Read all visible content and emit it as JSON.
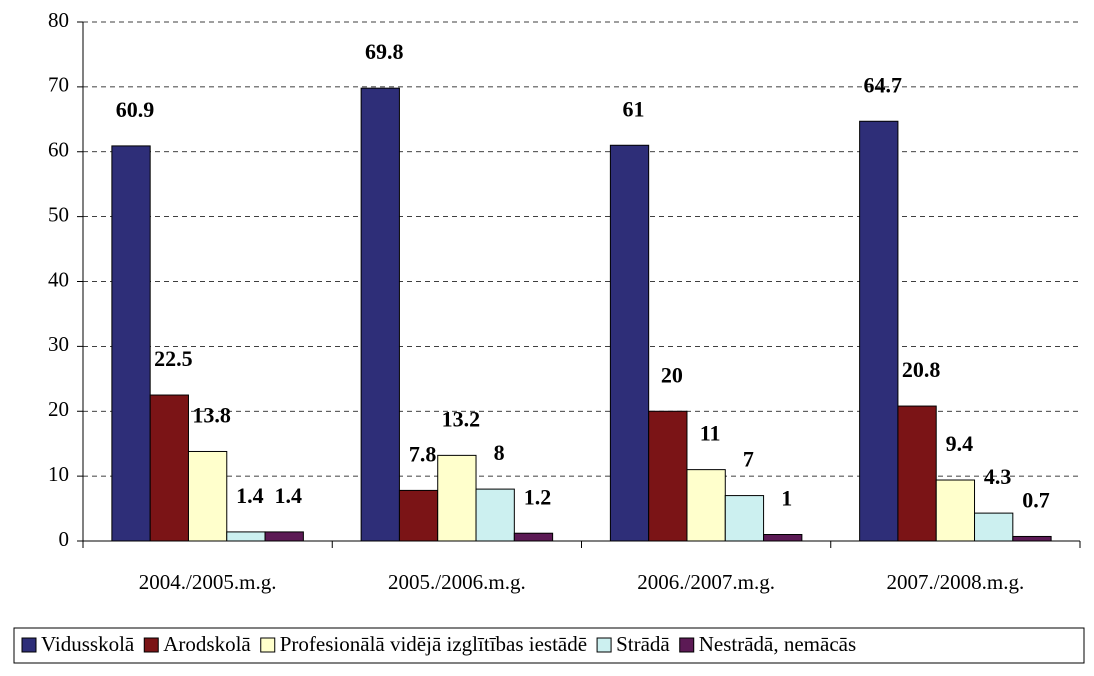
{
  "chart_data": {
    "type": "bar",
    "categories": [
      "2004./2005.m.g.",
      "2005./2006.m.g.",
      "2006./2007.m.g.",
      "2007./2008.m.g."
    ],
    "series": [
      {
        "name": "Vidusskolā",
        "color": "#2e2e78",
        "values": [
          60.9,
          69.8,
          61,
          64.7
        ]
      },
      {
        "name": "Arodskolā",
        "color": "#7b1416",
        "values": [
          22.5,
          7.8,
          20,
          20.8
        ]
      },
      {
        "name": "Profesionālā vidējā izglītības iestādē",
        "color": "#ffffcc",
        "values": [
          13.8,
          13.2,
          11,
          9.4
        ]
      },
      {
        "name": "Strādā",
        "color": "#ccf0f0",
        "values": [
          1.4,
          8,
          7,
          4.3
        ]
      },
      {
        "name": "Nestrādā, nemācās",
        "color": "#5c1a55",
        "values": [
          1.4,
          1.2,
          1,
          0.7
        ]
      }
    ],
    "ylim": [
      0,
      80
    ],
    "yticks": [
      0,
      10,
      20,
      30,
      40,
      50,
      60,
      70,
      80
    ],
    "grid": true,
    "legend": "bottom"
  }
}
